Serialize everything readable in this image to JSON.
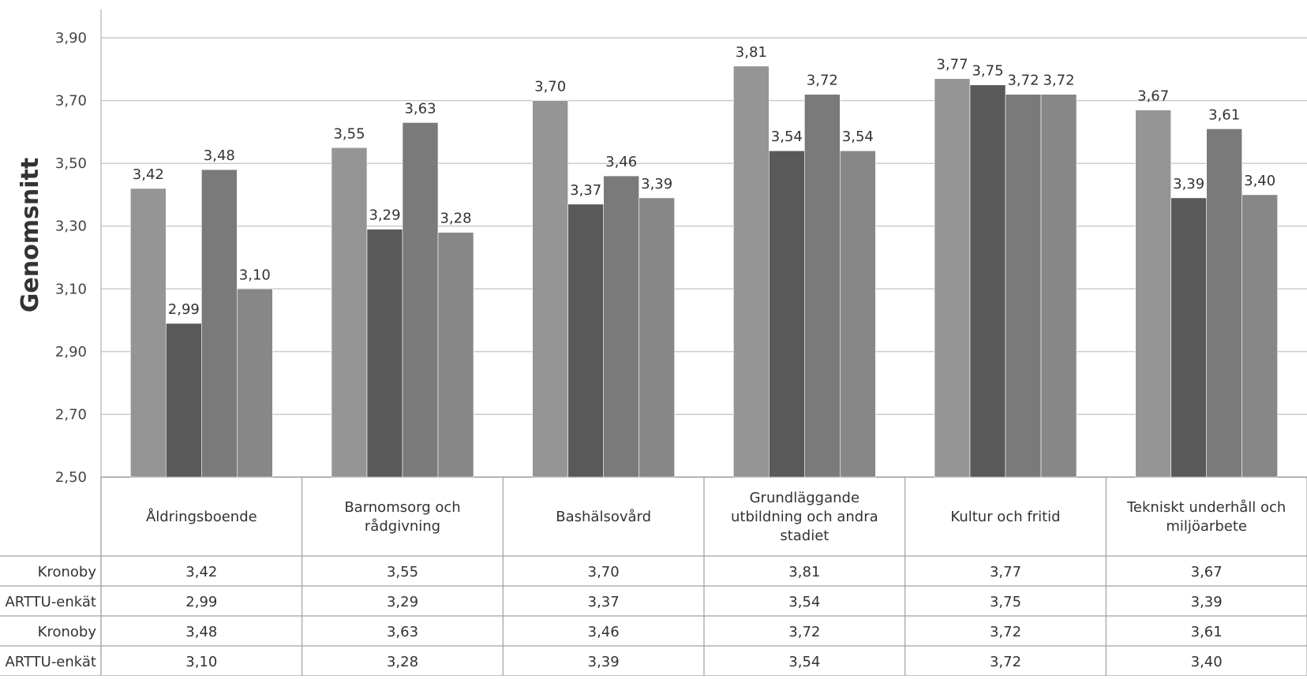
{
  "chart_data": {
    "type": "bar",
    "ylabel": "Genomsnitt",
    "ylim": [
      2.5,
      3.9
    ],
    "yticks": [
      "2,50",
      "2,70",
      "2,90",
      "3,10",
      "3,30",
      "3,50",
      "3,70",
      "3,90"
    ],
    "ytick_values": [
      2.5,
      2.7,
      2.9,
      3.1,
      3.3,
      3.5,
      3.7,
      3.9
    ],
    "grid": true,
    "categories": [
      "Åldringsboende",
      "Barnomsorg och rådgivning",
      "Bashälsovård",
      "Grundläggande utbildning och andra stadiet",
      "Kultur och fritid",
      "Tekniskt underhåll och miljöarbete"
    ],
    "series": [
      {
        "name": "Kronoby",
        "color": "#959595",
        "values": [
          3.42,
          3.55,
          3.7,
          3.81,
          3.77,
          3.67
        ],
        "labels": [
          "3,42",
          "3,55",
          "3,70",
          "3,81",
          "3,77",
          "3,67"
        ]
      },
      {
        "name": "ARTTU-enkät",
        "color": "#595959",
        "values": [
          2.99,
          3.29,
          3.37,
          3.54,
          3.75,
          3.39
        ],
        "labels": [
          "2,99",
          "3,29",
          "3,37",
          "3,54",
          "3,75",
          "3,39"
        ]
      },
      {
        "name": "Kronoby",
        "color": "#7a7a7a",
        "values": [
          3.48,
          3.63,
          3.46,
          3.72,
          3.72,
          3.61
        ],
        "labels": [
          "3,48",
          "3,63",
          "3,46",
          "3,72",
          "3,72",
          "3,61"
        ]
      },
      {
        "name": "ARTTU-enkät",
        "color": "#878787",
        "values": [
          3.1,
          3.28,
          3.39,
          3.54,
          3.72,
          3.4
        ],
        "labels": [
          "3,10",
          "3,28",
          "3,39",
          "3,54",
          "3,72",
          "3,40"
        ]
      }
    ],
    "table_rows": [
      {
        "name": "Kronoby",
        "cells": [
          "3,42",
          "3,55",
          "3,70",
          "3,81",
          "3,77",
          "3,67"
        ]
      },
      {
        "name": "ARTTU-enkät",
        "cells": [
          "2,99",
          "3,29",
          "3,37",
          "3,54",
          "3,75",
          "3,39"
        ]
      },
      {
        "name": "Kronoby",
        "cells": [
          "3,48",
          "3,63",
          "3,46",
          "3,72",
          "3,72",
          "3,61"
        ]
      },
      {
        "name": "ARTTU-enkät",
        "cells": [
          "3,10",
          "3,28",
          "3,39",
          "3,54",
          "3,72",
          "3,40"
        ]
      }
    ],
    "legend": "table-rows"
  }
}
